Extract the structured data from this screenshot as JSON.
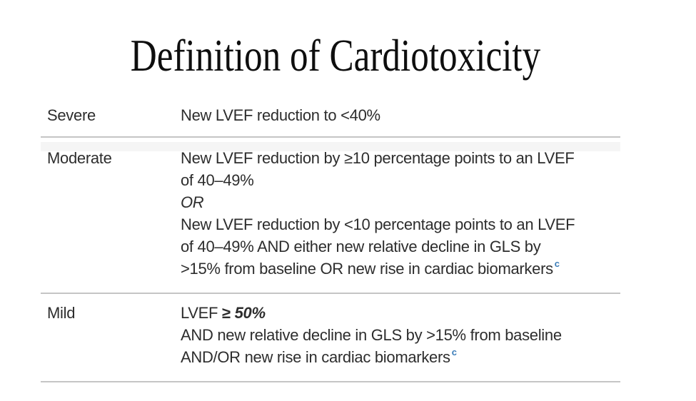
{
  "title": "Definition of Cardiotoxicity",
  "colors": {
    "background": "#ffffff",
    "title_text": "#0e0e0e",
    "body_text": "#2d2d2d",
    "divider": "#c5c5c5",
    "footnote_marker": "#3a7cb8",
    "row_tint": "#f5f5f5"
  },
  "table": {
    "rows": [
      {
        "label": "Severe",
        "lines": [
          {
            "segments": [
              {
                "text": "New LVEF reduction to <40%"
              }
            ]
          }
        ]
      },
      {
        "label": "Moderate",
        "lines": [
          {
            "segments": [
              {
                "text": "New LVEF reduction by ≥10 percentage points to an LVEF"
              }
            ]
          },
          {
            "segments": [
              {
                "text": "of 40–49%"
              }
            ]
          },
          {
            "segments": [
              {
                "text": "OR",
                "style": "italic"
              }
            ]
          },
          {
            "segments": [
              {
                "text": "New LVEF reduction by <10 percentage points to an LVEF"
              }
            ]
          },
          {
            "segments": [
              {
                "text": "of 40–49% AND either new relative decline in GLS by"
              }
            ]
          },
          {
            "segments": [
              {
                "text": ">15% from baseline OR new rise in cardiac biomarkers"
              },
              {
                "text": "c",
                "style": "superscript"
              }
            ]
          }
        ]
      },
      {
        "label": "Mild",
        "lines": [
          {
            "segments": [
              {
                "text": "LVEF "
              },
              {
                "text": "≥ ",
                "style": "bold"
              },
              {
                "text": "50%",
                "style": "bold-italic"
              }
            ]
          },
          {
            "segments": [
              {
                "text": "AND new relative decline in GLS by >15% from baseline"
              }
            ]
          },
          {
            "segments": [
              {
                "text": "AND/OR new rise in cardiac biomarkers"
              },
              {
                "text": "c",
                "style": "superscript"
              }
            ]
          }
        ]
      }
    ]
  }
}
